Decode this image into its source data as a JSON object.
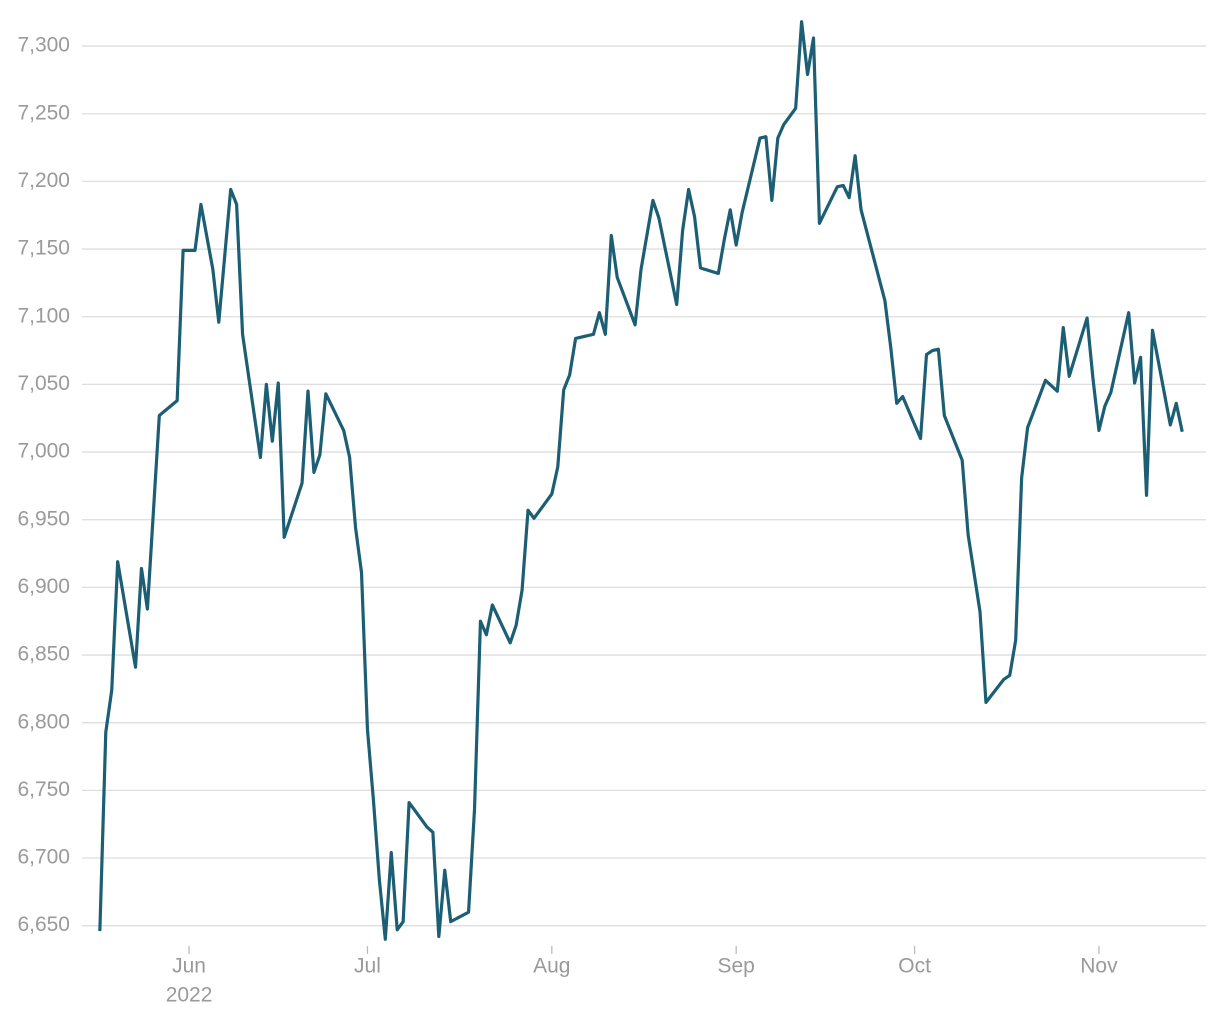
{
  "chart_data": {
    "type": "line",
    "year_label": "2022",
    "x": [
      -15,
      -14,
      -13,
      -12,
      -9,
      -8,
      -7,
      -5,
      -2,
      -1,
      1,
      2,
      4,
      5,
      7,
      8,
      9,
      12,
      13,
      14,
      15,
      16,
      19,
      20,
      21,
      22,
      23,
      26,
      27,
      28,
      29,
      30,
      31,
      32,
      33,
      34,
      35,
      36,
      37,
      40,
      41,
      42,
      43,
      44,
      47,
      48,
      49,
      50,
      51,
      54,
      55,
      56,
      57,
      58,
      61,
      62,
      63,
      64,
      65,
      68,
      69,
      70,
      71,
      72,
      75,
      76,
      78,
      79,
      82,
      83,
      84,
      85,
      86,
      89,
      90,
      91,
      92,
      93,
      96,
      97,
      98,
      99,
      100,
      102,
      103,
      104,
      105,
      106,
      109,
      110,
      111,
      112,
      113,
      117,
      118,
      119,
      120,
      123,
      124,
      125,
      126,
      127,
      130,
      131,
      133,
      134,
      137,
      138,
      139,
      140,
      141,
      144,
      146,
      147,
      148,
      151,
      152,
      153,
      154,
      155,
      158,
      159,
      160,
      161,
      162,
      165,
      166,
      167
    ],
    "series": [
      {
        "color": "#1c5e74",
        "values": [
          6646,
          6793,
          6824,
          6919,
          6841,
          6914,
          6884,
          7027,
          7038,
          7149,
          7149,
          7183,
          7135,
          7096,
          7194,
          7183,
          7087,
          6996,
          7050,
          7008,
          7051,
          6937,
          6977,
          7045,
          6985,
          6998,
          7043,
          7016,
          6996,
          6944,
          6911,
          6795,
          6743,
          6684,
          6640,
          6704,
          6647,
          6653,
          6741,
          6723,
          6719,
          6642,
          6691,
          6653,
          6660,
          6736,
          6875,
          6865,
          6887,
          6859,
          6872,
          6898,
          6957,
          6951,
          6969,
          6989,
          7046,
          7057,
          7084,
          7087,
          7103,
          7087,
          7160,
          7129,
          7094,
          7135,
          7186,
          7173,
          7109,
          7164,
          7194,
          7174,
          7136,
          7132,
          7157,
          7179,
          7153,
          7177,
          7232,
          7233,
          7186,
          7232,
          7242,
          7254,
          7318,
          7279,
          7306,
          7169,
          7196,
          7197,
          7188,
          7219,
          7179,
          7112,
          7077,
          7036,
          7041,
          7010,
          7072,
          7075,
          7076,
          7027,
          6994,
          6939,
          6882,
          6815,
          6832,
          6835,
          6861,
          6981,
          7018,
          7053,
          7045,
          7092,
          7056,
          7099,
          7054,
          7016,
          7034,
          7044,
          7103,
          7051,
          7070,
          6968,
          7090,
          7020,
          7036,
          7015
        ]
      }
    ],
    "xlim": [
      -18,
      171
    ],
    "xticks": [
      {
        "value": 0,
        "label": "Jun"
      },
      {
        "value": 30,
        "label": "Jul"
      },
      {
        "value": 61,
        "label": "Aug"
      },
      {
        "value": 92,
        "label": "Sep"
      },
      {
        "value": 122,
        "label": "Oct"
      },
      {
        "value": 153,
        "label": "Nov"
      }
    ],
    "ylim": [
      6635,
      7320
    ],
    "yticks": [
      {
        "value": 6650,
        "label": "6,650"
      },
      {
        "value": 6700,
        "label": "6,700"
      },
      {
        "value": 6750,
        "label": "6,750"
      },
      {
        "value": 6800,
        "label": "6,800"
      },
      {
        "value": 6850,
        "label": "6,850"
      },
      {
        "value": 6900,
        "label": "6,900"
      },
      {
        "value": 6950,
        "label": "6,950"
      },
      {
        "value": 7000,
        "label": "7,000"
      },
      {
        "value": 7050,
        "label": "7,050"
      },
      {
        "value": 7100,
        "label": "7,100"
      },
      {
        "value": 7150,
        "label": "7,150"
      },
      {
        "value": 7200,
        "label": "7,200"
      },
      {
        "value": 7250,
        "label": "7,250"
      },
      {
        "value": 7300,
        "label": "7,300"
      }
    ],
    "grid": true
  }
}
